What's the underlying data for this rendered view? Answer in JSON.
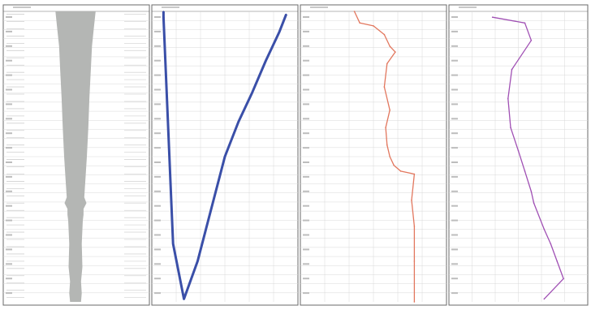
{
  "chart_data": [
    {
      "type": "area",
      "track": 1,
      "description_note": "",
      "depth_range": [
        0,
        1
      ],
      "half_width": {
        "depth": [
          0,
          0.06,
          0.12,
          0.2,
          0.3,
          0.4,
          0.5,
          0.58,
          0.64,
          0.66,
          0.68,
          0.7,
          0.72,
          0.8,
          0.88,
          0.93,
          0.97,
          1.0
        ],
        "value": [
          0.55,
          0.5,
          0.45,
          0.42,
          0.38,
          0.35,
          0.31,
          0.27,
          0.24,
          0.3,
          0.22,
          0.22,
          0.2,
          0.17,
          0.19,
          0.15,
          0.17,
          0.15
        ]
      },
      "fill_color": "#b4b6b4"
    },
    {
      "type": "line",
      "track": 2,
      "x": [
        0.05,
        0.05,
        0.12,
        0.2,
        0.3,
        0.4,
        0.5,
        0.6,
        0.7,
        0.8,
        0.9,
        0.95
      ],
      "depth": [
        0.0,
        0.02,
        0.8,
        0.99,
        0.86,
        0.68,
        0.5,
        0.38,
        0.28,
        0.17,
        0.07,
        0.01
      ],
      "color": "#3a4fa8"
    },
    {
      "type": "line",
      "track": 3,
      "x": [
        0.36,
        0.4,
        0.5,
        0.58,
        0.62,
        0.66,
        0.6,
        0.58,
        0.62,
        0.59,
        0.6,
        0.62,
        0.65,
        0.7,
        0.8,
        0.78,
        0.8,
        0.8,
        0.8
      ],
      "depth": [
        0.0,
        0.04,
        0.05,
        0.08,
        0.12,
        0.14,
        0.18,
        0.26,
        0.34,
        0.4,
        0.46,
        0.5,
        0.53,
        0.55,
        0.56,
        0.65,
        0.74,
        0.86,
        1.0
      ],
      "color": "#e2775e"
    },
    {
      "type": "line",
      "track": 4,
      "x": [
        0.3,
        0.55,
        0.6,
        0.45,
        0.42,
        0.44,
        0.5,
        0.55,
        0.6,
        0.62,
        0.7,
        0.75,
        0.8,
        0.85,
        0.7
      ],
      "depth": [
        0.02,
        0.04,
        0.1,
        0.2,
        0.3,
        0.4,
        0.48,
        0.55,
        0.62,
        0.66,
        0.75,
        0.8,
        0.86,
        0.92,
        0.99
      ],
      "color": "#a050b4"
    }
  ],
  "colors": {
    "track_border": "#6a6a6a",
    "grid": "#d8d8d8",
    "tick": "#777777"
  }
}
